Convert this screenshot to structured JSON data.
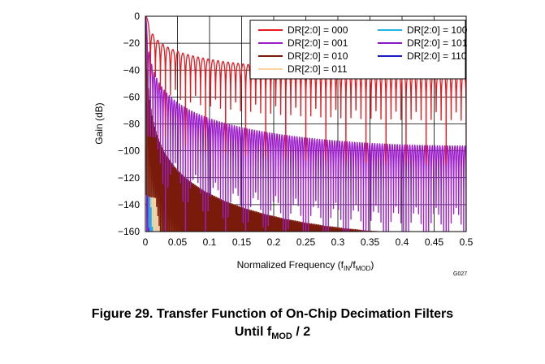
{
  "chart_data": {
    "type": "line",
    "xlabel": "Normalized Frequency (fIN/fMOD)",
    "xlabel_parts": {
      "main": "Normalized Frequency (f",
      "sub1": "IN",
      "slash": "/f",
      "sub2": "MOD",
      "close": ")"
    },
    "ylabel": "Gain (dB)",
    "figure_code": "G027",
    "xlim": [
      0,
      0.5
    ],
    "ylim": [
      -160,
      0
    ],
    "x_ticks": [
      "0",
      "0.05",
      "0.1",
      "0.15",
      "0.2",
      "0.25",
      "0.3",
      "0.35",
      "0.4",
      "0.45",
      "0.5"
    ],
    "y_ticks": [
      "0",
      "−20",
      "−40",
      "−60",
      "−80",
      "−100",
      "−120",
      "−140",
      "−160"
    ],
    "grid": true,
    "legend_position": "top-right",
    "series": [
      {
        "name": "DR[2:0] = 000",
        "color": "#e8191f",
        "order": 1,
        "notch_spacing": 0.0078125
      },
      {
        "name": "DR[2:0] = 001",
        "color": "#9b1fc9",
        "order": 2,
        "notch_spacing": 0.00390625
      },
      {
        "name": "DR[2:0] = 010",
        "color": "#7a1a0a",
        "order": 3,
        "notch_spacing": 0.001953125
      },
      {
        "name": "DR[2:0] = 011",
        "color": "#fcd5a3",
        "order": 3,
        "notch_spacing": 0.0009765625
      },
      {
        "name": "DR[2:0] = 100",
        "color": "#21b5e8",
        "order": 3,
        "notch_spacing": 0.00048828125
      },
      {
        "name": "DR[2:0] = 101",
        "color": "#8b17c7",
        "order": 3,
        "notch_spacing": 0.000244140625
      },
      {
        "name": "DR[2:0] = 110",
        "color": "#1c1cc4",
        "order": 3,
        "notch_spacing": 0.0001220703125
      }
    ]
  },
  "caption": {
    "line1": "Figure 29. Transfer Function of On-Chip Decimation Filters",
    "line2_main": "Until f",
    "line2_sub": "MOD",
    "line2_tail": " / 2"
  }
}
